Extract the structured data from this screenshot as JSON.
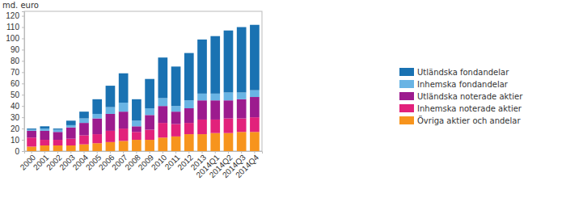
{
  "chart_data": {
    "type": "bar",
    "stacked": true,
    "y_label": "md. euro",
    "categories": [
      "2000",
      "2001",
      "2002",
      "2003",
      "2004",
      "2005",
      "2006",
      "2007",
      "2008",
      "2009",
      "2010",
      "2011",
      "2012",
      "2013",
      "2014Q1",
      "2014Q2",
      "2014Q3",
      "2014Q4"
    ],
    "ylim": [
      0,
      124
    ],
    "yticks": [
      0,
      10,
      20,
      30,
      40,
      50,
      60,
      70,
      80,
      90,
      100,
      110,
      120
    ],
    "grid": false,
    "legend": "right",
    "series": [
      {
        "name": "Övriga aktier och andelar",
        "color": "#f7941d",
        "values": [
          4,
          5,
          5,
          5,
          6,
          7,
          8,
          9,
          10,
          10,
          12,
          13,
          15,
          15,
          16,
          16,
          17,
          17
        ]
      },
      {
        "name": "Inhemska noterade aktier",
        "color": "#e2217b",
        "values": [
          8,
          5,
          5,
          6,
          8,
          8,
          10,
          11,
          7,
          9,
          13,
          11,
          10,
          13,
          12,
          13,
          12,
          13
        ]
      },
      {
        "name": "Utländska noterade aktier",
        "color": "#9c1b8e",
        "values": [
          6,
          8,
          7,
          10,
          11,
          14,
          15,
          15,
          5,
          13,
          15,
          11,
          13,
          17,
          17,
          16,
          17,
          18
        ]
      },
      {
        "name": "Inhemska fondandelar",
        "color": "#69b4e4",
        "values": [
          1,
          2,
          2,
          2,
          4,
          4,
          6,
          8,
          5,
          6,
          7,
          5,
          7,
          6,
          6,
          7,
          6,
          6
        ]
      },
      {
        "name": "Utländska fondandelar",
        "color": "#1a72b2",
        "values": [
          1,
          2,
          1,
          4,
          6,
          13,
          19,
          26,
          19,
          26,
          36,
          35,
          42,
          48,
          51,
          55,
          58,
          58
        ]
      }
    ]
  }
}
